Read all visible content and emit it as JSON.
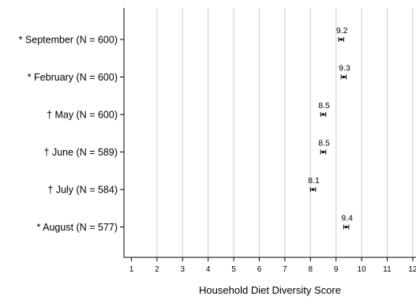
{
  "chart_data": {
    "type": "scatter",
    "orientation": "horizontal",
    "title": "",
    "xlabel": "Household Diet Diversity Score",
    "ylabel": "",
    "xlim": [
      0.5,
      12
    ],
    "xticks": [
      1,
      2,
      3,
      4,
      5,
      6,
      7,
      8,
      9,
      10,
      11,
      12
    ],
    "grid": "vertical",
    "categories": [
      "* September (N = 600)",
      "* February (N = 600)",
      "† May (N = 600)",
      "† June (N = 589)",
      "† July (N = 584)",
      "* August (N = 577)"
    ],
    "values": [
      9.2,
      9.3,
      8.5,
      8.5,
      8.1,
      9.4
    ],
    "data_labels": [
      "9.2",
      "9.3",
      "8.5",
      "8.5",
      "8.1",
      "9.4"
    ],
    "ci_lower": [
      9.1,
      9.2,
      8.4,
      8.4,
      8.0,
      9.3
    ],
    "ci_upper": [
      9.3,
      9.4,
      8.6,
      8.6,
      8.2,
      9.5
    ]
  }
}
